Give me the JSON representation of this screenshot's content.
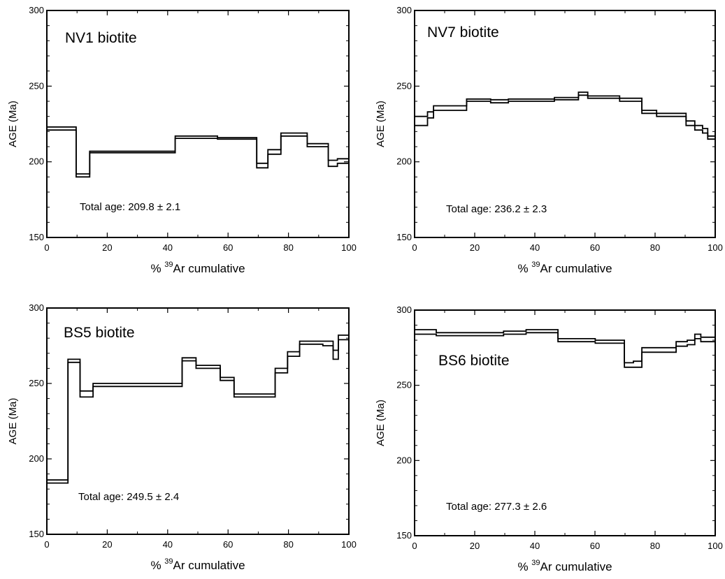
{
  "chart_data": [
    {
      "type": "line",
      "title": "NV1 biotite",
      "annotation": "Total age: 209.8 ± 2.1",
      "ylabel": "AGE (Ma)",
      "xlabel_prefix": "% ",
      "xlabel_sup": "39",
      "xlabel_suffix": "Ar cumulative",
      "xlim": [
        0,
        100
      ],
      "ylim": [
        150,
        300
      ],
      "x_ticks": [
        "0",
        "20",
        "40",
        "60",
        "80",
        "100"
      ],
      "y_ticks": [
        "150",
        "200",
        "250",
        "300"
      ],
      "grid": false,
      "steps": [
        {
          "x0": 0,
          "x1": 9.7,
          "lo": 221,
          "hi": 223
        },
        {
          "x0": 9.7,
          "x1": 14.2,
          "lo": 190,
          "hi": 192
        },
        {
          "x0": 14.2,
          "x1": 42.5,
          "lo": 206,
          "hi": 207
        },
        {
          "x0": 42.5,
          "x1": 56.5,
          "lo": 215.5,
          "hi": 217
        },
        {
          "x0": 56.5,
          "x1": 69.5,
          "lo": 215,
          "hi": 216
        },
        {
          "x0": 69.5,
          "x1": 73.2,
          "lo": 196,
          "hi": 199
        },
        {
          "x0": 73.2,
          "x1": 77.5,
          "lo": 205,
          "hi": 208
        },
        {
          "x0": 77.5,
          "x1": 86.2,
          "lo": 217,
          "hi": 219
        },
        {
          "x0": 86.2,
          "x1": 93.2,
          "lo": 210,
          "hi": 212
        },
        {
          "x0": 93.2,
          "x1": 96.2,
          "lo": 197,
          "hi": 201
        },
        {
          "x0": 96.2,
          "x1": 100,
          "lo": 199,
          "hi": 202
        }
      ]
    },
    {
      "type": "line",
      "title": "NV7 biotite",
      "annotation": "Total age: 236.2 ± 2.3",
      "ylabel": "AGE (Ma)",
      "xlabel_prefix": "% ",
      "xlabel_sup": "39",
      "xlabel_suffix": "Ar cumulative",
      "xlim": [
        0,
        100
      ],
      "ylim": [
        150,
        300
      ],
      "x_ticks": [
        "0",
        "20",
        "40",
        "60",
        "80",
        "100"
      ],
      "y_ticks": [
        "150",
        "200",
        "250",
        "300"
      ],
      "grid": false,
      "steps": [
        {
          "x0": 0,
          "x1": 4.3,
          "lo": 224,
          "hi": 230
        },
        {
          "x0": 4.3,
          "x1": 6.3,
          "lo": 229,
          "hi": 233
        },
        {
          "x0": 6.3,
          "x1": 17.3,
          "lo": 234,
          "hi": 237
        },
        {
          "x0": 17.3,
          "x1": 25.3,
          "lo": 240,
          "hi": 241.5
        },
        {
          "x0": 25.3,
          "x1": 31.2,
          "lo": 239,
          "hi": 241
        },
        {
          "x0": 31.2,
          "x1": 46.5,
          "lo": 240,
          "hi": 241.5
        },
        {
          "x0": 46.5,
          "x1": 54.5,
          "lo": 241,
          "hi": 242.5
        },
        {
          "x0": 54.5,
          "x1": 57.6,
          "lo": 244,
          "hi": 246
        },
        {
          "x0": 57.6,
          "x1": 68.2,
          "lo": 242,
          "hi": 243.5
        },
        {
          "x0": 68.2,
          "x1": 75.6,
          "lo": 240,
          "hi": 242
        },
        {
          "x0": 75.6,
          "x1": 80.5,
          "lo": 232,
          "hi": 234
        },
        {
          "x0": 80.5,
          "x1": 90.3,
          "lo": 230,
          "hi": 232
        },
        {
          "x0": 90.3,
          "x1": 93.2,
          "lo": 224,
          "hi": 227
        },
        {
          "x0": 93.2,
          "x1": 95.8,
          "lo": 221,
          "hi": 224
        },
        {
          "x0": 95.8,
          "x1": 97.5,
          "lo": 219,
          "hi": 222
        },
        {
          "x0": 97.5,
          "x1": 100,
          "lo": 215,
          "hi": 217
        }
      ]
    },
    {
      "type": "line",
      "title": "BS5 biotite",
      "annotation": "Total age: 249.5 ± 2.4",
      "ylabel": "AGE (Ma)",
      "xlabel_prefix": "% ",
      "xlabel_sup": "39",
      "xlabel_suffix": "Ar cumulative",
      "xlim": [
        0,
        100
      ],
      "ylim": [
        150,
        300
      ],
      "x_ticks": [
        "0",
        "20",
        "40",
        "60",
        "80",
        "100"
      ],
      "y_ticks": [
        "150",
        "200",
        "250",
        "300"
      ],
      "grid": false,
      "steps": [
        {
          "x0": 0,
          "x1": 7.0,
          "lo": 184,
          "hi": 186
        },
        {
          "x0": 7.0,
          "x1": 11.0,
          "lo": 264,
          "hi": 266
        },
        {
          "x0": 11.0,
          "x1": 15.3,
          "lo": 241,
          "hi": 245
        },
        {
          "x0": 15.3,
          "x1": 44.8,
          "lo": 248,
          "hi": 250
        },
        {
          "x0": 44.8,
          "x1": 49.4,
          "lo": 265,
          "hi": 267
        },
        {
          "x0": 49.4,
          "x1": 57.4,
          "lo": 260,
          "hi": 262
        },
        {
          "x0": 57.4,
          "x1": 62.0,
          "lo": 252,
          "hi": 254
        },
        {
          "x0": 62.0,
          "x1": 75.6,
          "lo": 241,
          "hi": 243
        },
        {
          "x0": 75.6,
          "x1": 79.7,
          "lo": 257,
          "hi": 260
        },
        {
          "x0": 79.7,
          "x1": 83.7,
          "lo": 268,
          "hi": 271
        },
        {
          "x0": 83.7,
          "x1": 91.4,
          "lo": 276,
          "hi": 278
        },
        {
          "x0": 91.4,
          "x1": 94.8,
          "lo": 275,
          "hi": 278
        },
        {
          "x0": 94.8,
          "x1": 96.5,
          "lo": 266,
          "hi": 272
        },
        {
          "x0": 96.5,
          "x1": 100,
          "lo": 279,
          "hi": 282
        }
      ]
    },
    {
      "type": "line",
      "title": "BS6 biotite",
      "annotation": "Total age: 277.3 ± 2.6",
      "ylabel": "AGE (Ma)",
      "xlabel_prefix": "% ",
      "xlabel_sup": "39",
      "xlabel_suffix": "Ar cumulative",
      "xlim": [
        0,
        100
      ],
      "ylim": [
        150,
        300
      ],
      "x_ticks": [
        "0",
        "20",
        "40",
        "60",
        "80",
        "100"
      ],
      "y_ticks": [
        "150",
        "200",
        "250",
        "300"
      ],
      "grid": false,
      "steps": [
        {
          "x0": 0,
          "x1": 7.2,
          "lo": 284,
          "hi": 287
        },
        {
          "x0": 7.2,
          "x1": 29.6,
          "lo": 283,
          "hi": 285
        },
        {
          "x0": 29.6,
          "x1": 37.1,
          "lo": 284,
          "hi": 286
        },
        {
          "x0": 37.1,
          "x1": 47.7,
          "lo": 285,
          "hi": 287
        },
        {
          "x0": 47.7,
          "x1": 60.1,
          "lo": 279,
          "hi": 281
        },
        {
          "x0": 60.1,
          "x1": 69.8,
          "lo": 278,
          "hi": 280
        },
        {
          "x0": 69.8,
          "x1": 72.8,
          "lo": 262,
          "hi": 265
        },
        {
          "x0": 72.8,
          "x1": 75.6,
          "lo": 262,
          "hi": 266
        },
        {
          "x0": 75.6,
          "x1": 87.0,
          "lo": 272,
          "hi": 275
        },
        {
          "x0": 87.0,
          "x1": 90.7,
          "lo": 276,
          "hi": 279
        },
        {
          "x0": 90.7,
          "x1": 93.2,
          "lo": 277,
          "hi": 280
        },
        {
          "x0": 93.2,
          "x1": 95.2,
          "lo": 281,
          "hi": 284
        },
        {
          "x0": 95.2,
          "x1": 100,
          "lo": 279,
          "hi": 282
        }
      ]
    }
  ]
}
